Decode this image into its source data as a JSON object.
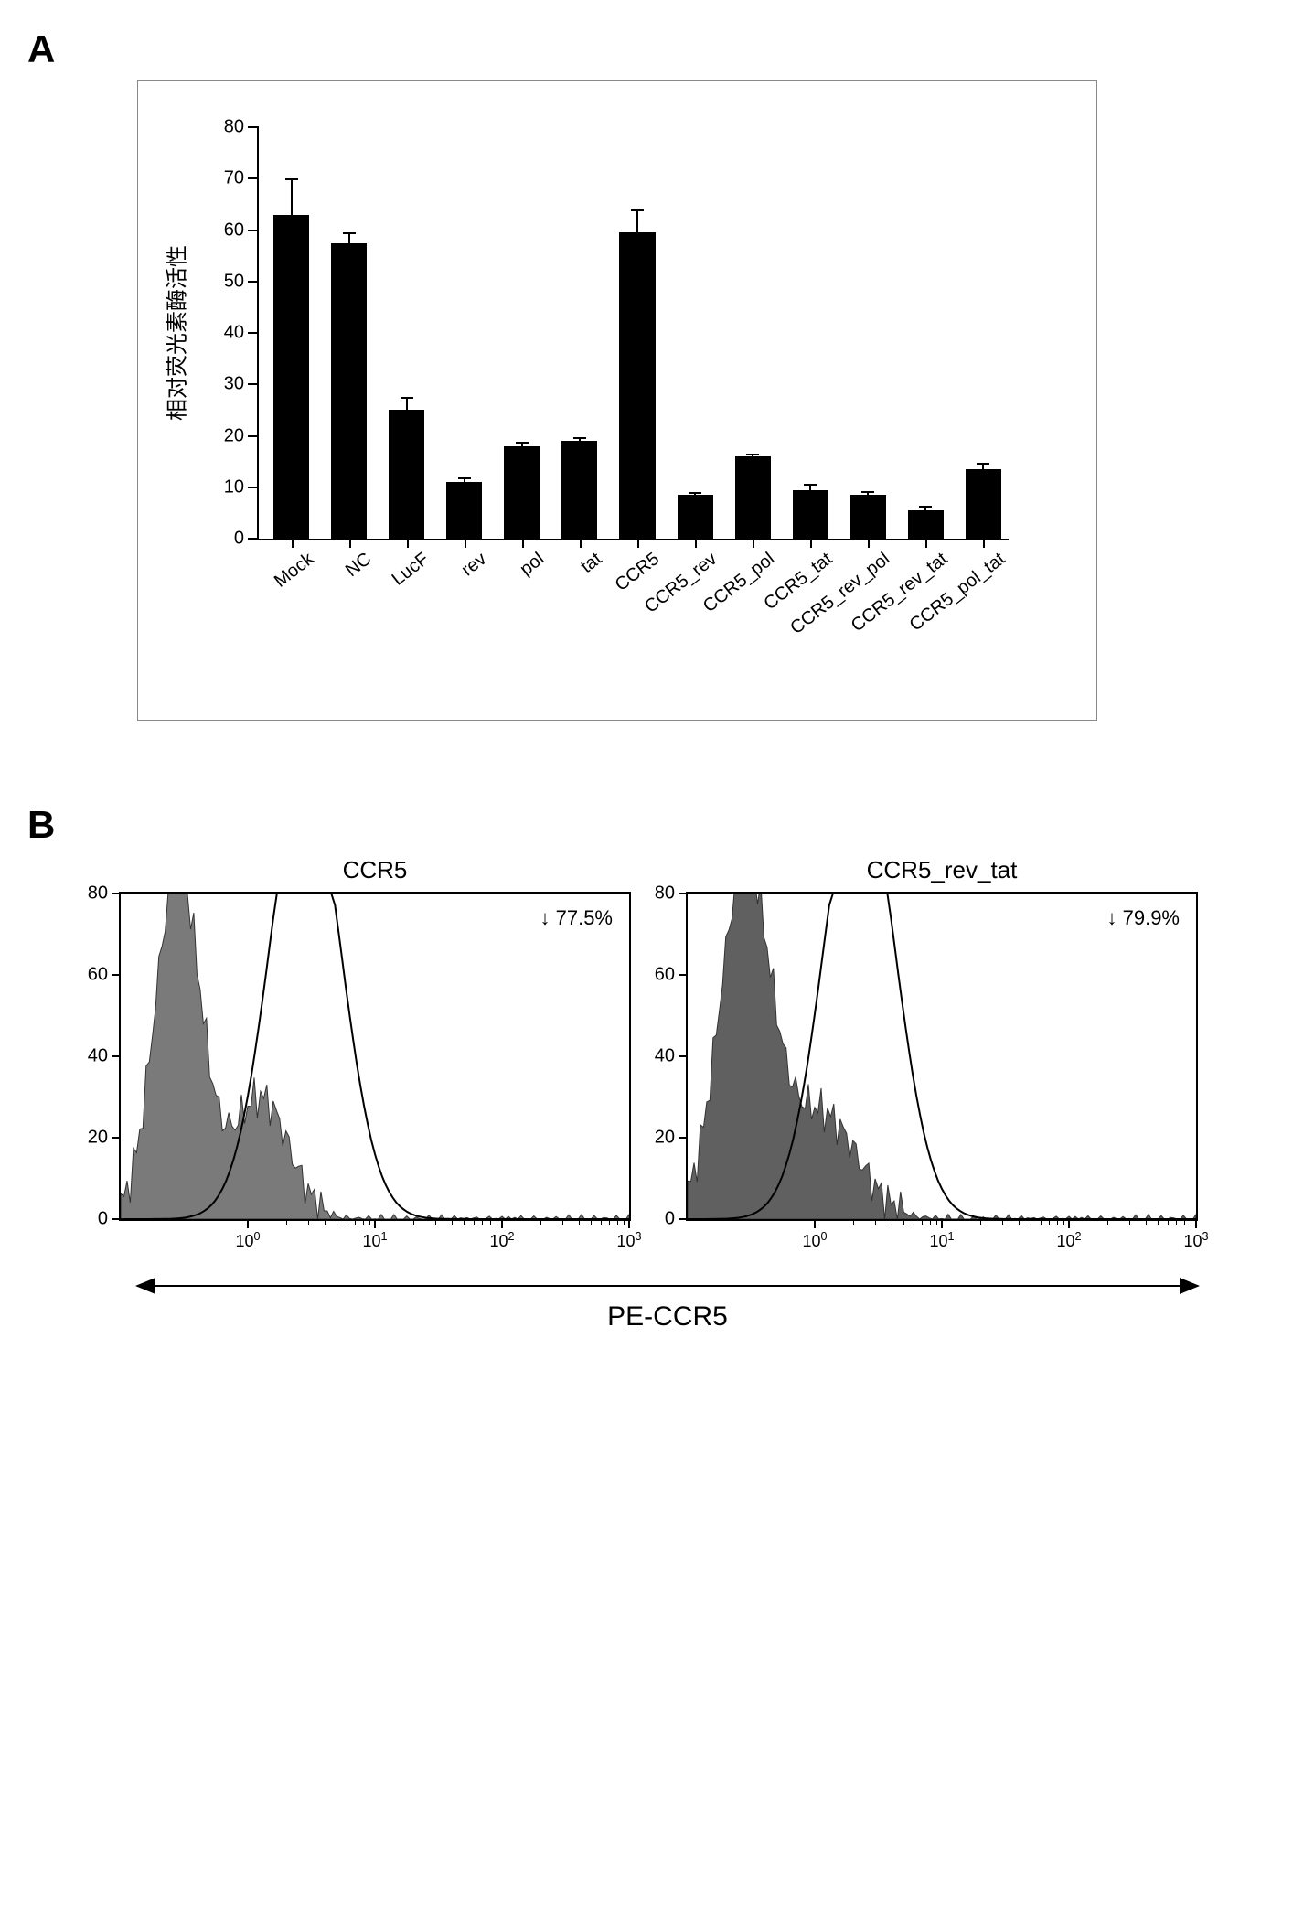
{
  "panelA": {
    "label": "A",
    "chart": {
      "type": "bar",
      "ylabel": "相对荧光素酶活性",
      "ylabel_fontsize": 24,
      "ylim": [
        0,
        80
      ],
      "ytick_step": 10,
      "tick_fontsize": 20,
      "bar_color": "#000000",
      "background_color": "#ffffff",
      "bar_width_ratio": 0.62,
      "categories": [
        "Mock",
        "NC",
        "LucF",
        "rev",
        "pol",
        "tat",
        "CCR5",
        "CCR5_rev",
        "CCR5_pol",
        "CCR5_tat",
        "CCR5_rev_pol",
        "CCR5_rev_tat",
        "CCR5_pol_tat"
      ],
      "values": [
        63,
        57.5,
        25,
        11,
        18,
        19,
        59.5,
        8.5,
        16,
        9.5,
        8.5,
        5.5,
        13.5
      ],
      "errors": [
        7,
        2,
        2.5,
        1,
        0.8,
        0.8,
        4.5,
        0.5,
        0.6,
        1.2,
        0.8,
        0.9,
        1.2
      ],
      "xlabel_rotation_deg": -38,
      "xlabel_fontsize": 20
    }
  },
  "panelB": {
    "label": "B",
    "axis_label": "PE-CCR5",
    "axis_label_fontsize": 30,
    "plots": [
      {
        "title": "CCR5",
        "annotation": "↓ 77.5%",
        "annotation_fontsize": 22,
        "ylim": [
          0,
          80
        ],
        "ytick_step": 20,
        "x_scale": "log",
        "xlim_exp": [
          -1,
          3
        ],
        "xtick_labels": [
          "10⁰",
          "10¹",
          "10²",
          "10³"
        ],
        "xtick_exp": [
          0,
          1,
          2,
          3
        ],
        "filled_color": "#7a7a7a",
        "outline_color": "#000000",
        "title_fontsize": 26
      },
      {
        "title": "CCR5_rev_tat",
        "annotation": "↓ 79.9%",
        "annotation_fontsize": 22,
        "ylim": [
          0,
          80
        ],
        "ytick_step": 20,
        "x_scale": "log",
        "xlim_exp": [
          -1,
          3
        ],
        "xtick_labels": [
          "10⁰",
          "10¹",
          "10²",
          "10³"
        ],
        "xtick_exp": [
          0,
          1,
          2,
          3
        ],
        "filled_color": "#606060",
        "outline_color": "#000000",
        "title_fontsize": 26
      }
    ]
  }
}
